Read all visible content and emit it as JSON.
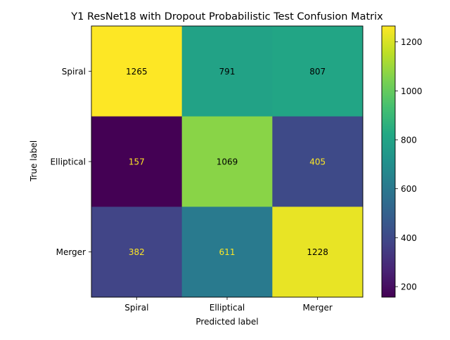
{
  "chart_data": {
    "type": "heatmap",
    "title": "Y1 ResNet18 with Dropout Probabilistic Test Confusion Matrix",
    "xlabel": "Predicted label",
    "ylabel": "True label",
    "x_categories": [
      "Spiral",
      "Elliptical",
      "Merger"
    ],
    "y_categories": [
      "Spiral",
      "Elliptical",
      "Merger"
    ],
    "values": [
      [
        1265,
        791,
        807
      ],
      [
        157,
        1069,
        405
      ],
      [
        382,
        611,
        1228
      ]
    ],
    "colormap": "viridis",
    "vmin": 157,
    "vmax": 1265,
    "colorbar_ticks": [
      "200",
      "400",
      "600",
      "800",
      "1000",
      "1200"
    ],
    "grid": false,
    "label_colors": {
      "dark_cell": "#fde725",
      "light_cell": "#000000"
    }
  }
}
